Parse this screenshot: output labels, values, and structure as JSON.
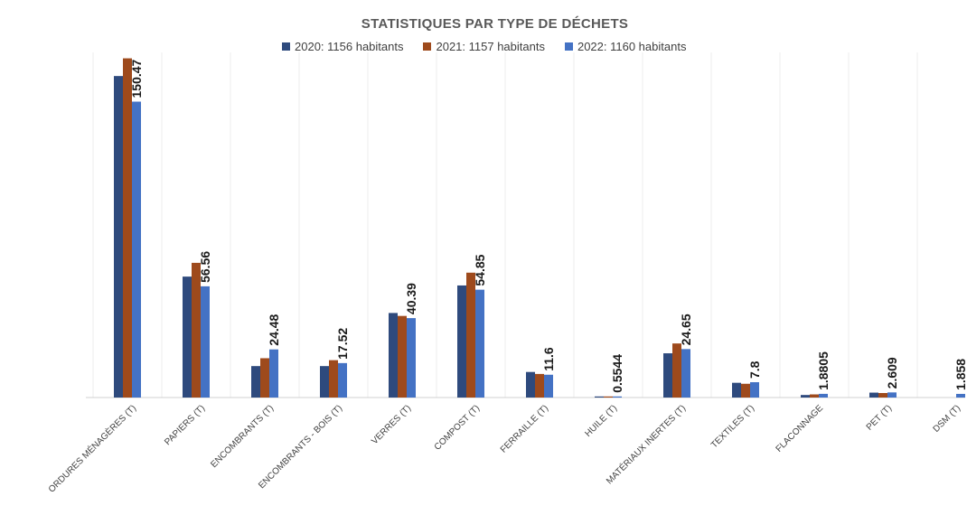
{
  "chart_data": {
    "type": "bar",
    "title": "STATISTIQUES  PAR TYPE DE DÉCHETS",
    "xlabel": "",
    "ylabel": "",
    "ylim": [
      0,
      170
    ],
    "grid": "vertical",
    "legend_position": "top",
    "categories": [
      "ORDURES MÉNAGÈRES (T)",
      "PAPIERS (T)",
      "ENCOMBRANTS (T)",
      "ENCOMBRANTS - BOIS (T)",
      "VERRES (T)",
      "COMPOST (T)",
      "FERRAILLE (T)",
      "HUILE (T)",
      "MATÉRIAUX INERTES (T)",
      "TEXTILES (T)",
      "FLACONNAGE",
      "PET (T)",
      "DSM (T)"
    ],
    "series": [
      {
        "name": "2020: 1156 habitants",
        "color": "#2E4A7D",
        "values": [
          163.5,
          61.5,
          16.0,
          16.0,
          43.0,
          57.0,
          13.0,
          0.5,
          22.5,
          7.5,
          1.3,
          2.5,
          0
        ]
      },
      {
        "name": "2021: 1157 habitants",
        "color": "#9E4A1C",
        "values": [
          172.5,
          68.5,
          20.0,
          19.0,
          41.5,
          63.5,
          12.0,
          0.5,
          27.5,
          7.0,
          1.6,
          2.3,
          0
        ]
      },
      {
        "name": "2022: 1160 habitants",
        "color": "#4472C4",
        "values": [
          150.47,
          56.56,
          24.48,
          17.52,
          40.39,
          54.85,
          11.6,
          0.5544,
          24.65,
          7.8,
          1.8805,
          2.609,
          1.858
        ]
      }
    ],
    "data_labels": [
      "150.47",
      "56.56",
      "24.48",
      "17.52",
      "40.39",
      "54.85",
      "11.6",
      "0.5544",
      "24.65",
      "7.8",
      "1.8805",
      "2.609",
      "1.858"
    ]
  }
}
